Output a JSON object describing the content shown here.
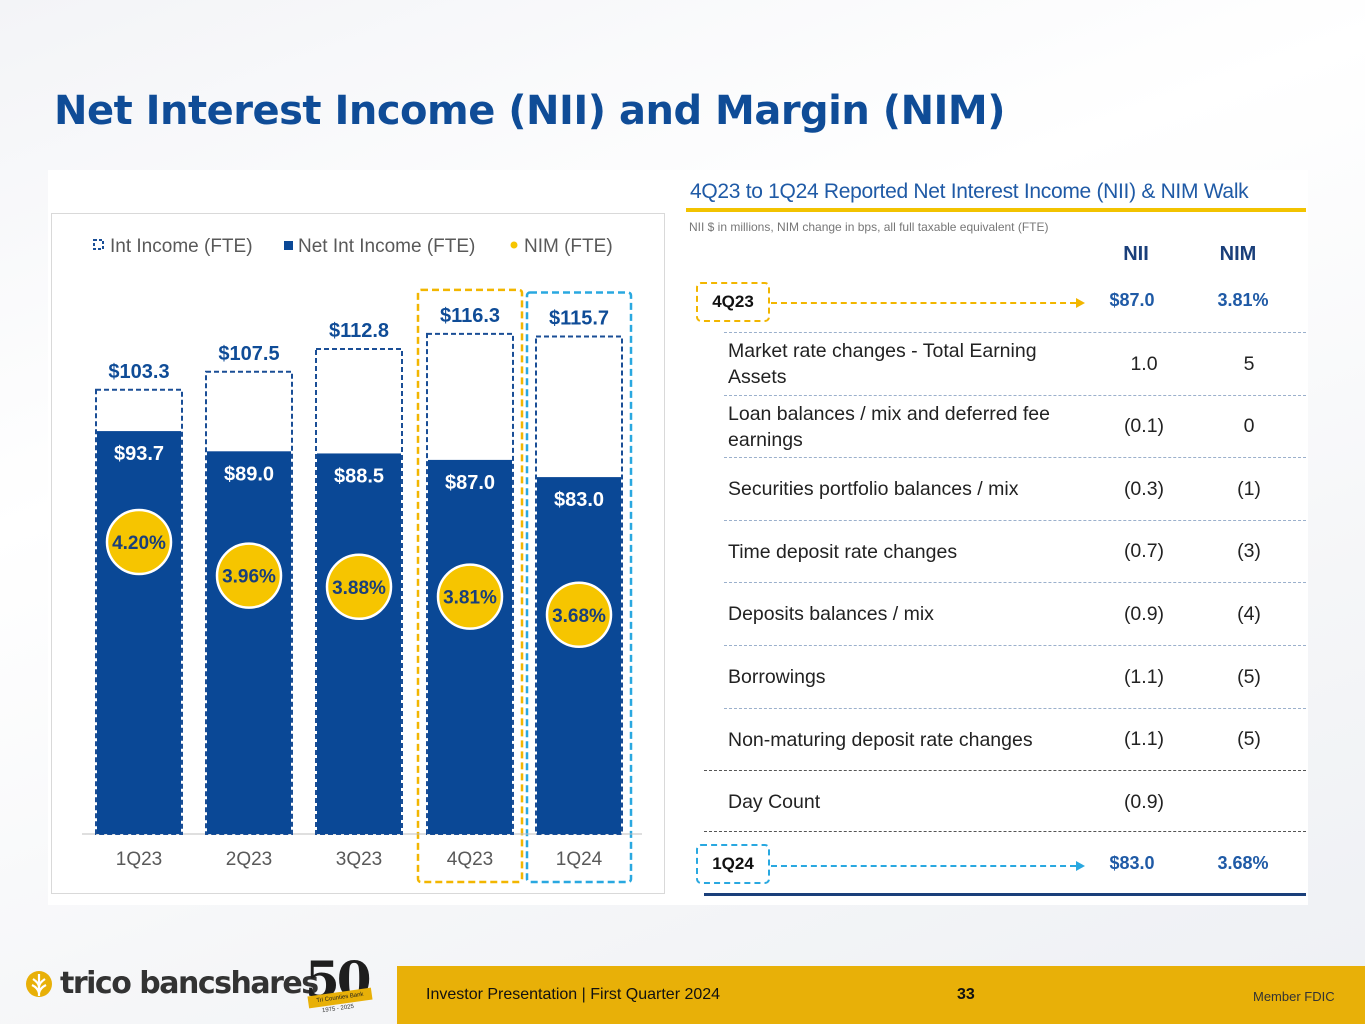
{
  "page": {
    "title": "Net Interest Income (NII) and Margin (NIM)",
    "page_number": "33",
    "footer_text": "Investor Presentation  |  First Quarter 2024",
    "member_fdic": "Member FDIC",
    "logo_text": "trico bancshares",
    "anniversary": {
      "number": "50",
      "ribbon": "Tri Counties Bank",
      "years": "1975 - 2025"
    }
  },
  "colors": {
    "title_blue": "#0f4c97",
    "bar_blue": "#0a4896",
    "dash_blue": "#1a4e96",
    "nim_yellow": "#f6c500",
    "highlight_gold": "#f2b600",
    "highlight_cyan": "#29a8e0",
    "footer_gold": "#e8b008"
  },
  "chart_data": {
    "type": "bar",
    "stacked_overlay": true,
    "categories": [
      "1Q23",
      "2Q23",
      "3Q23",
      "4Q23",
      "1Q24"
    ],
    "series": [
      {
        "name": "Int Income (FTE)",
        "style": "dashed-outline",
        "values": [
          103.3,
          107.5,
          112.8,
          116.3,
          115.7
        ],
        "labels": [
          "$103.3",
          "$107.5",
          "$112.8",
          "$116.3",
          "$115.7"
        ]
      },
      {
        "name": "Net Int Income (FTE)",
        "style": "solid",
        "values": [
          93.7,
          89.0,
          88.5,
          87.0,
          83.0
        ],
        "labels": [
          "$93.7",
          "$89.0",
          "$88.5",
          "$87.0",
          "$83.0"
        ]
      },
      {
        "name": "NIM (FTE)",
        "style": "marker",
        "values": [
          4.2,
          3.96,
          3.88,
          3.81,
          3.68
        ],
        "labels": [
          "4.20%",
          "3.96%",
          "3.88%",
          "3.81%",
          "3.68%"
        ]
      }
    ],
    "legend": [
      "Int Income (FTE)",
      "Net Int Income (FTE)",
      "NIM (FTE)"
    ],
    "legend_position": "top",
    "ylim": [
      0,
      120
    ],
    "highlighted_categories": [
      {
        "category": "4Q23",
        "color": "gold"
      },
      {
        "category": "1Q24",
        "color": "cyan"
      }
    ],
    "nim_scale_range_pct": [
      3.4,
      4.4
    ]
  },
  "walk": {
    "title": "4Q23 to 1Q24 Reported Net Interest Income (NII) & NIM Walk",
    "subtitle": "NII $ in millions, NIM change in bps, all full taxable equivalent (FTE)",
    "columns": [
      "NII",
      "NIM"
    ],
    "start": {
      "label": "4Q23",
      "nii": "$87.0",
      "nim": "3.81%"
    },
    "rows": [
      {
        "label": "Market rate changes - Total Earning Assets",
        "nii": "1.0",
        "nim": "5"
      },
      {
        "label": "Loan balances / mix and deferred fee earnings",
        "nii": "(0.1)",
        "nim": "0"
      },
      {
        "label": "Securities portfolio balances / mix",
        "nii": "(0.3)",
        "nim": "(1)"
      },
      {
        "label": "Time deposit rate changes",
        "nii": "(0.7)",
        "nim": "(3)"
      },
      {
        "label": "Deposits balances / mix",
        "nii": "(0.9)",
        "nim": "(4)"
      },
      {
        "label": "Borrowings",
        "nii": "(1.1)",
        "nim": "(5)"
      },
      {
        "label": "Non-maturing deposit rate changes",
        "nii": "(1.1)",
        "nim": "(5)"
      }
    ],
    "day_count": {
      "label": "Day Count",
      "nii": "(0.9)",
      "nim": ""
    },
    "end": {
      "label": "1Q24",
      "nii": "$83.0",
      "nim": "3.68%"
    }
  }
}
